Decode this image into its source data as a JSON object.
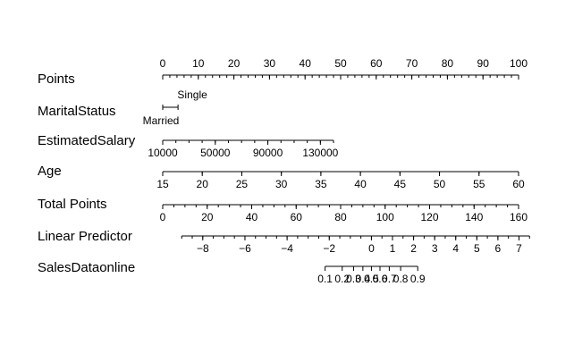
{
  "chart_data": {
    "type": "nomogram",
    "scales": [
      {
        "name": "Points",
        "range": [
          0,
          100
        ],
        "major": [
          0,
          10,
          20,
          30,
          40,
          50,
          60,
          70,
          80,
          90,
          100
        ],
        "minor": [
          0,
          2,
          4,
          6,
          8,
          10,
          12,
          14,
          16,
          18,
          20,
          22,
          24,
          26,
          28,
          30,
          32,
          34,
          36,
          38,
          40,
          42,
          44,
          46,
          48,
          50,
          52,
          54,
          56,
          58,
          60,
          62,
          64,
          66,
          68,
          70,
          72,
          74,
          76,
          78,
          80,
          82,
          84,
          86,
          88,
          90,
          92,
          94,
          96,
          98,
          100
        ],
        "labels_above": true
      },
      {
        "name": "MaritalStatus",
        "categories": [
          {
            "label": "Married",
            "points": 0,
            "label_side": "below"
          },
          {
            "label": "Single",
            "points": 4.3,
            "label_side": "above"
          }
        ]
      },
      {
        "name": "EstimatedSalary",
        "range": [
          10000,
          140000
        ],
        "points_range": [
          0,
          48
        ],
        "major": [
          10000,
          50000,
          90000,
          130000
        ],
        "minor": [
          10000,
          20000,
          30000,
          40000,
          50000,
          60000,
          70000,
          80000,
          90000,
          100000,
          110000,
          120000,
          130000,
          140000
        ],
        "labels_above": false
      },
      {
        "name": "Age",
        "range": [
          15,
          60
        ],
        "points_range": [
          0,
          100
        ],
        "major": [
          15,
          20,
          25,
          30,
          35,
          40,
          45,
          50,
          55,
          60
        ],
        "minor": [
          15,
          20,
          25,
          30,
          35,
          40,
          45,
          50,
          55,
          60
        ],
        "labels_above": false
      },
      {
        "name": "Total Points",
        "range": [
          0,
          160
        ],
        "major": [
          0,
          20,
          40,
          60,
          80,
          100,
          120,
          140,
          160
        ],
        "minor": [
          0,
          5,
          10,
          15,
          20,
          25,
          30,
          35,
          40,
          45,
          50,
          55,
          60,
          65,
          70,
          75,
          80,
          85,
          90,
          95,
          100,
          105,
          110,
          115,
          120,
          125,
          130,
          135,
          140,
          145,
          150,
          155,
          160
        ],
        "labels_above": false
      },
      {
        "name": "Linear Predictor",
        "range": [
          -9,
          7.5
        ],
        "total_points_range": [
          0,
          160
        ],
        "linear_predictor_at_total_zero": -9.9,
        "linear_predictor_per_total_point": 0.1055,
        "major": [
          -8,
          -6,
          -4,
          -2,
          0,
          1,
          2,
          3,
          4,
          5,
          6,
          7
        ],
        "minor": [
          -9,
          -8.5,
          -8,
          -7.5,
          -7,
          -6.5,
          -6,
          -5.5,
          -5,
          -4.5,
          -4,
          -3.5,
          -3,
          -2.5,
          -2,
          -1.5,
          -1,
          -0.5,
          0,
          0.5,
          1,
          1.5,
          2,
          2.5,
          3,
          3.5,
          4,
          4.5,
          5,
          5.5,
          6,
          6.5,
          7,
          7.5
        ],
        "labels_above": false
      },
      {
        "name": "SalesDataonline",
        "probabilities": [
          0.1,
          0.2,
          0.3,
          0.4,
          0.5,
          0.6,
          0.7,
          0.8,
          0.9
        ],
        "tick_labels": [
          "0.1",
          "0.2",
          "0.3",
          "0.4",
          "0.5",
          "0.6",
          "0.7",
          "0.8",
          "0.9"
        ],
        "labels_above": false
      }
    ]
  }
}
